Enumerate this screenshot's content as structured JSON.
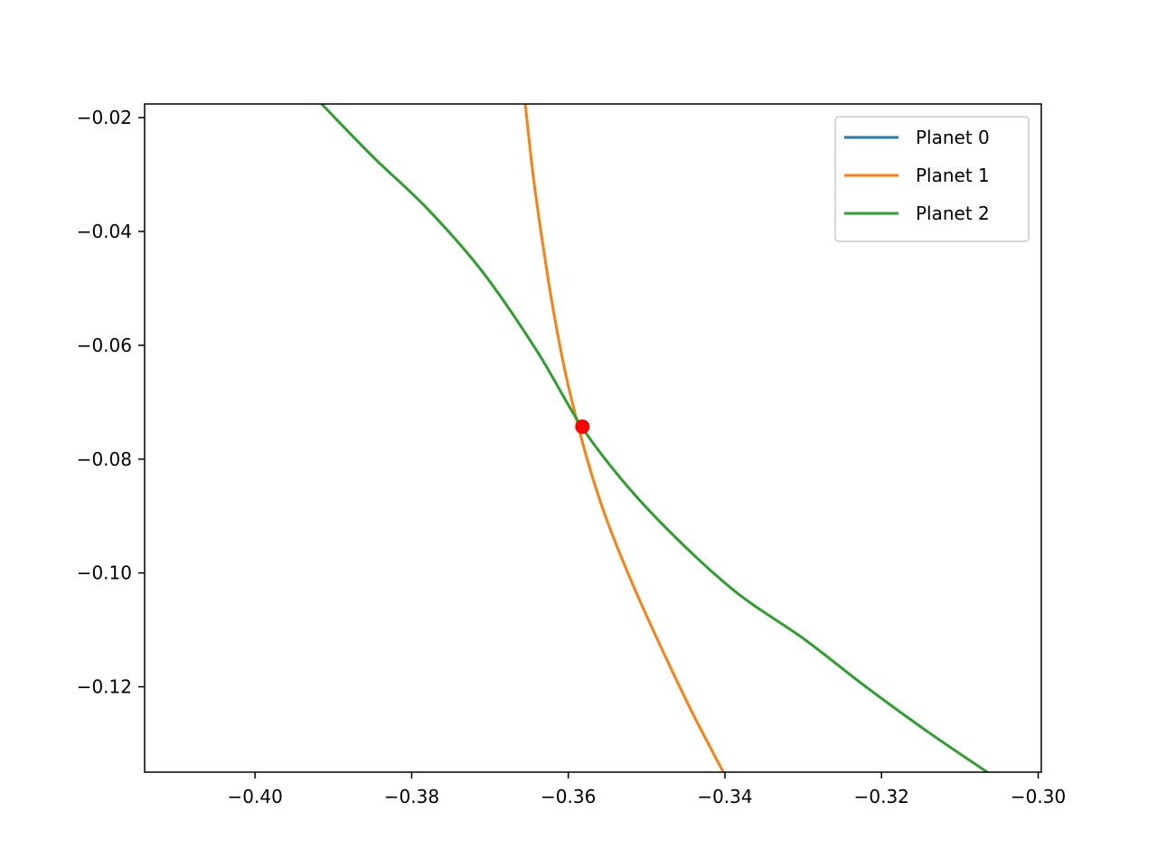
{
  "chart_data": {
    "type": "line",
    "title": "",
    "xlabel": "",
    "ylabel": "",
    "xlim": [
      -0.4141,
      -0.2996
    ],
    "ylim": [
      -0.135,
      -0.0176
    ],
    "xticks": [
      -0.4,
      -0.38,
      -0.36,
      -0.34,
      -0.32,
      -0.3
    ],
    "xtick_labels": [
      "−0.40",
      "−0.38",
      "−0.36",
      "−0.34",
      "−0.32",
      "−0.30"
    ],
    "yticks": [
      -0.02,
      -0.04,
      -0.06,
      -0.08,
      -0.1,
      -0.12
    ],
    "ytick_labels": [
      "−0.02",
      "−0.04",
      "−0.06",
      "−0.08",
      "−0.10",
      "−0.12"
    ],
    "grid": false,
    "legend_position": "top-right",
    "series": [
      {
        "name": "Planet 0",
        "color": "#1f77b4",
        "x": [],
        "y": []
      },
      {
        "name": "Planet 1",
        "color": "#ff7f0e",
        "x": [
          -0.3655,
          -0.3645,
          -0.3635,
          -0.3625,
          -0.3615,
          -0.3605,
          -0.3595,
          -0.358,
          -0.3565,
          -0.355,
          -0.353,
          -0.3505,
          -0.3475,
          -0.344,
          -0.3402
        ],
        "y": [
          -0.0176,
          -0.03,
          -0.04,
          -0.049,
          -0.057,
          -0.064,
          -0.07,
          -0.078,
          -0.085,
          -0.091,
          -0.098,
          -0.106,
          -0.115,
          -0.125,
          -0.135
        ]
      },
      {
        "name": "Planet 2",
        "color": "#2ca02c",
        "x": [
          -0.3915,
          -0.385,
          -0.378,
          -0.371,
          -0.364,
          -0.3582,
          -0.352,
          -0.345,
          -0.338,
          -0.33,
          -0.322,
          -0.314,
          -0.3065
        ],
        "y": [
          -0.0176,
          -0.0268,
          -0.036,
          -0.047,
          -0.061,
          -0.0745,
          -0.0855,
          -0.0955,
          -0.104,
          -0.1115,
          -0.12,
          -0.128,
          -0.135
        ]
      }
    ],
    "markers": [
      {
        "x": -0.3582,
        "y": -0.0743,
        "color": "#ff0000"
      }
    ]
  }
}
